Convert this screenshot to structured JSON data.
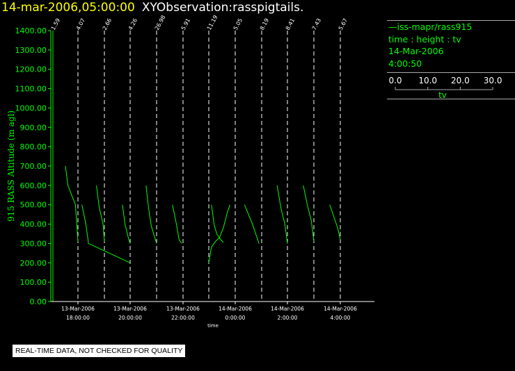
{
  "header": {
    "datetime": "14-mar-2006,05:00:00",
    "title": "XYObservation:rasspigtails."
  },
  "legend": {
    "series": "iss-mapr/rass915",
    "vars": "time : height : tv",
    "date": "14-Mar-2006",
    "time": "4:00:50",
    "scale_ticks": [
      "0.0",
      "10.0",
      "20.0",
      "30.0"
    ],
    "scale_label": "tv"
  },
  "footer": {
    "note": "REAL-TIME DATA, NOT CHECKED FOR QUALITY"
  },
  "colors": {
    "data": "#00ff00",
    "axis": "#ffffff",
    "title_date": "#ffff00",
    "background": "#000000"
  },
  "chart_data": {
    "type": "line",
    "ylabel": "915 RASS Altitude (m agl)",
    "xlabel": "time",
    "ylim": [
      0,
      1400
    ],
    "xlim_hours": [
      16.0,
      4.65
    ],
    "y_ticks": [
      "0.00",
      "100.00",
      "200.00",
      "300.00",
      "400.00",
      "500.00",
      "600.00",
      "700.00",
      "800.00",
      "900.00",
      "1000.00",
      "1100.00",
      "1200.00",
      "1300.00",
      "1400.00"
    ],
    "x_ticks": [
      {
        "date": "13-Mar-2006",
        "time": "18:00:00",
        "h": 18
      },
      {
        "date": "13-Mar-2006",
        "time": "20:00:00",
        "h": 20
      },
      {
        "date": "13-Mar-2006",
        "time": "22:00:00",
        "h": 22
      },
      {
        "date": "14-Mar-2006",
        "time": "0:00:00",
        "h": 24
      },
      {
        "date": "14-Mar-2006",
        "time": "2:00:00",
        "h": 26
      },
      {
        "date": "14-Mar-2006",
        "time": "4:00:00",
        "h": 28
      }
    ],
    "profile_lines": [
      {
        "h": 16.0,
        "label": "1.59"
      },
      {
        "h": 18.0,
        "label": "4.07"
      },
      {
        "h": 20.0,
        "label": "2.66"
      },
      {
        "h": 22.0,
        "label": "4.26"
      },
      {
        "h": 24.0,
        "label": "26.98"
      },
      {
        "h": 26.0,
        "label": "5.91"
      },
      {
        "h": 28.0,
        "label": "11.19"
      },
      {
        "h": 30.0,
        "label": "5.05"
      },
      {
        "h": 32.0,
        "label": "8.19"
      },
      {
        "h": 34.0,
        "label": "8.41"
      },
      {
        "h": 36.0,
        "label": "7.43"
      },
      {
        "h": 38.0,
        "label": "5.67"
      }
    ],
    "traces": [
      [
        [
          17.0,
          700
        ],
        [
          17.2,
          600
        ],
        [
          17.5,
          550
        ],
        [
          17.8,
          500
        ],
        [
          18.0,
          310
        ]
      ],
      [
        [
          18.3,
          500
        ],
        [
          18.6,
          400
        ],
        [
          18.8,
          300
        ],
        [
          22.0,
          200
        ]
      ],
      [
        [
          19.4,
          600
        ],
        [
          19.6,
          490
        ],
        [
          19.9,
          400
        ],
        [
          20.0,
          310
        ]
      ],
      [
        [
          21.4,
          500
        ],
        [
          21.6,
          400
        ],
        [
          21.9,
          320
        ],
        [
          22.0,
          300
        ]
      ],
      [
        [
          23.2,
          600
        ],
        [
          23.4,
          480
        ],
        [
          23.6,
          390
        ],
        [
          24.0,
          300
        ]
      ],
      [
        [
          25.2,
          500
        ],
        [
          25.5,
          400
        ],
        [
          25.7,
          320
        ],
        [
          25.9,
          300
        ]
      ],
      [
        [
          28.0,
          200
        ],
        [
          28.2,
          280
        ],
        [
          28.5,
          310
        ],
        [
          28.8,
          330
        ],
        [
          29.1,
          380
        ],
        [
          29.4,
          460
        ],
        [
          29.6,
          500
        ]
      ],
      [
        [
          28.2,
          500
        ],
        [
          28.4,
          400
        ],
        [
          28.6,
          350
        ],
        [
          28.9,
          320
        ],
        [
          29.1,
          305
        ]
      ],
      [
        [
          30.7,
          500
        ],
        [
          31.0,
          450
        ],
        [
          31.3,
          400
        ],
        [
          31.6,
          340
        ],
        [
          31.8,
          300
        ]
      ],
      [
        [
          33.2,
          600
        ],
        [
          33.5,
          480
        ],
        [
          33.8,
          400
        ],
        [
          34.0,
          300
        ]
      ],
      [
        [
          35.2,
          600
        ],
        [
          35.5,
          500
        ],
        [
          35.8,
          420
        ],
        [
          36.0,
          310
        ]
      ],
      [
        [
          37.2,
          500
        ],
        [
          37.5,
          440
        ],
        [
          37.8,
          380
        ],
        [
          38.0,
          320
        ]
      ]
    ]
  }
}
